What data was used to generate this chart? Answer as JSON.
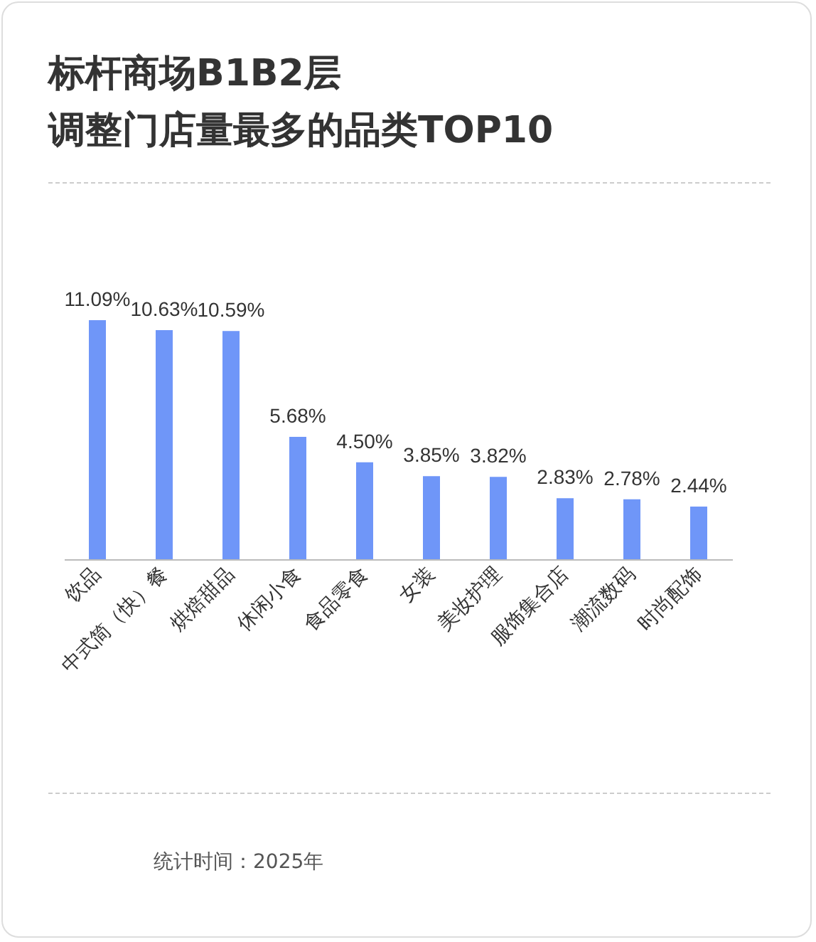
{
  "chart_data": {
    "type": "bar",
    "title": "标杆商场B1B2层",
    "subtitle": "调整门店量最多的品类TOP10",
    "categories": [
      "饮品",
      "中式简（快）餐",
      "烘焙甜品",
      "休闲小食",
      "食品零食",
      "女装",
      "美妆护理",
      "服饰集合店",
      "潮流数码",
      "时尚配饰"
    ],
    "values": [
      11.09,
      10.63,
      10.59,
      5.68,
      4.5,
      3.85,
      3.82,
      2.83,
      2.78,
      2.44
    ],
    "value_labels": [
      "11.09%",
      "10.63%",
      "10.59%",
      "5.68%",
      "4.50%",
      "3.85%",
      "3.82%",
      "2.83%",
      "2.78%",
      "2.44%"
    ],
    "color": "#6f96f8",
    "grid": false,
    "annotations": [
      "统计时间：2025年"
    ]
  }
}
